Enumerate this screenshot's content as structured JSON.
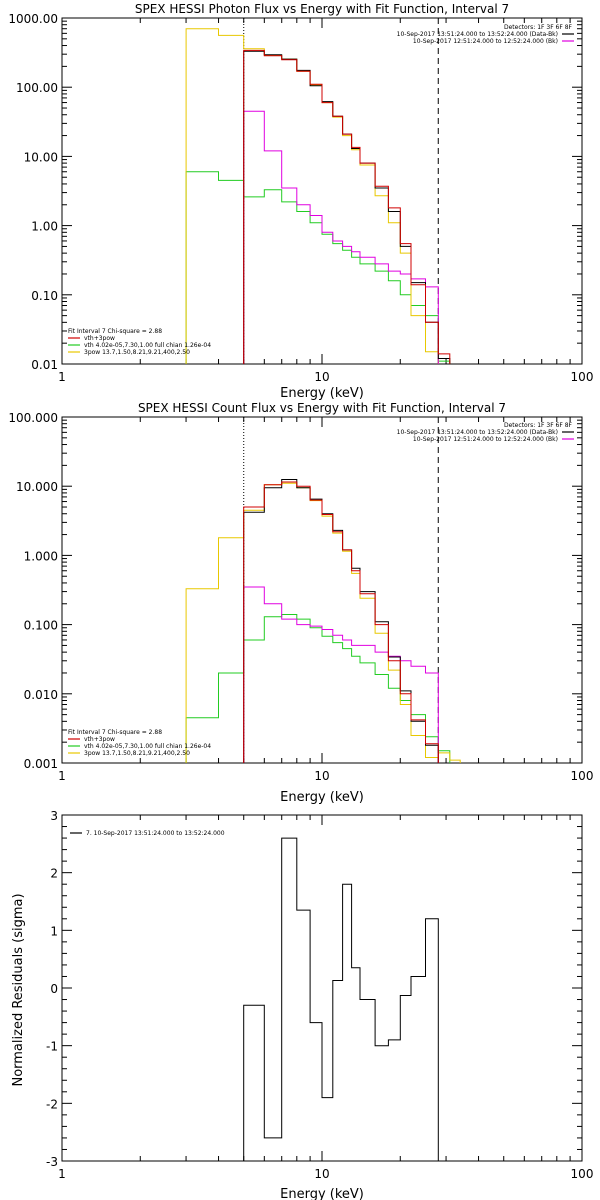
{
  "colors": {
    "data": "#000000",
    "total_fit": "#d00000",
    "background": "#e000e0",
    "vth": "#22cc22",
    "pow": "#e8c800"
  },
  "chart_data": [
    {
      "type": "line",
      "title": "SPEX HESSI Photon Flux vs Energy with Fit Function, Interval 7",
      "xlabel": "Energy (keV)",
      "ylabel": "",
      "xscale": "log",
      "yscale": "log",
      "xlim": [
        1,
        100
      ],
      "ylim": [
        0.01,
        1000
      ],
      "x_ticks": [
        "1",
        "10",
        "100"
      ],
      "y_ticks": [
        "0.01",
        "0.10",
        "1.00",
        "10.00",
        "100.00",
        "1000.00"
      ],
      "y_tick_values": [
        0.01,
        0.1,
        1,
        10,
        100,
        1000
      ],
      "fit_range_keV": [
        5,
        28
      ],
      "header_right": [
        "Detectors: 1F 3F 6F 8F",
        "10-Sep-2017 13:51:24.000 to 13:52:24.000 (Data-Bk)",
        "10-Sep-2017 12:51:24.000 to 12:52:24.000 (Bk)"
      ],
      "legend_left": [
        "Fit Interval 7   Chi-square = 2.88",
        "vth+3pow",
        "vth 4.02e-05,7.30,1.00  full chian 1.26e-04",
        "3pow 13.7,1.50,8.21,9.21,400,2.50"
      ],
      "edges": [
        3,
        4,
        5,
        6,
        7,
        8,
        9,
        10,
        11,
        12,
        13,
        14,
        16,
        18,
        20,
        22,
        25,
        28,
        31,
        34
      ],
      "series": [
        {
          "name": "(Data-Bk)",
          "color": "#000000",
          "values": [
            null,
            null,
            330,
            295,
            255,
            175,
            105,
            62,
            38,
            21,
            13,
            8,
            3.5,
            1.6,
            0.5,
            0.15,
            0.04,
            0.012,
            null
          ]
        },
        {
          "name": "vth+3pow",
          "color": "#d00000",
          "values": [
            null,
            null,
            340,
            285,
            250,
            170,
            110,
            60,
            38,
            21,
            13.5,
            8,
            3.7,
            1.8,
            0.55,
            0.14,
            0.04,
            0.014,
            null
          ]
        },
        {
          "name": "(Bk)",
          "color": "#e000e0",
          "values": [
            null,
            null,
            45,
            12,
            3.5,
            2,
            1.4,
            0.8,
            0.6,
            0.5,
            0.42,
            0.35,
            0.28,
            0.22,
            0.2,
            0.17,
            0.13,
            null,
            null
          ]
        },
        {
          "name": "vth",
          "color": "#22cc22",
          "values": [
            6,
            4.5,
            2.6,
            3.3,
            2.2,
            1.6,
            1.1,
            0.75,
            0.55,
            0.44,
            0.35,
            0.28,
            0.22,
            0.16,
            0.1,
            0.07,
            0.05,
            0.011,
            null
          ]
        },
        {
          "name": "3pow",
          "color": "#e8c800",
          "values": [
            700,
            560,
            360,
            290,
            255,
            170,
            108,
            60,
            37,
            20,
            12.5,
            7.5,
            2.7,
            1.1,
            0.4,
            0.05,
            0.015,
            null,
            null
          ]
        }
      ]
    },
    {
      "type": "line",
      "title": "SPEX HESSI Count Flux vs Energy with Fit Function, Interval 7",
      "xlabel": "Energy (keV)",
      "ylabel": "",
      "xscale": "log",
      "yscale": "log",
      "xlim": [
        1,
        100
      ],
      "ylim": [
        0.001,
        100
      ],
      "x_ticks": [
        "1",
        "10",
        "100"
      ],
      "y_ticks": [
        "0.001",
        "0.010",
        "0.100",
        "1.000",
        "10.000",
        "100.000"
      ],
      "y_tick_values": [
        0.001,
        0.01,
        0.1,
        1,
        10,
        100
      ],
      "fit_range_keV": [
        5,
        28
      ],
      "header_right": [
        "Detectors: 1F 3F 6F 8F",
        "10-Sep-2017 13:51:24.000 to 13:52:24.000 (Data-Bk)",
        "10-Sep-2017 12:51:24.000 to 12:52:24.000 (Bk)"
      ],
      "legend_left": [
        "Fit Interval 7   Chi-square = 2.88",
        "vth+3pow",
        "vth 4.02e-05,7.30,1.00  full chian 1.26e-04",
        "3pow 13.7,1.50,8.21,9.21,400,2.50"
      ],
      "edges": [
        3,
        4,
        5,
        6,
        7,
        8,
        9,
        10,
        11,
        12,
        13,
        14,
        16,
        18,
        20,
        22,
        25,
        28,
        31,
        34
      ],
      "series": [
        {
          "name": "(Data-Bk)",
          "color": "#000000",
          "values": [
            null,
            null,
            4.2,
            9.5,
            12.5,
            9.5,
            6.5,
            4,
            2.3,
            1.2,
            0.65,
            0.3,
            0.11,
            0.034,
            0.011,
            0.004,
            0.0018,
            null,
            null
          ]
        },
        {
          "name": "vth+3pow",
          "color": "#d00000",
          "values": [
            null,
            null,
            5,
            10.5,
            11.5,
            10,
            6.3,
            3.9,
            2.2,
            1.2,
            0.6,
            0.28,
            0.1,
            0.03,
            0.01,
            0.0042,
            0.0019,
            null,
            null
          ]
        },
        {
          "name": "(Bk)",
          "color": "#e000e0",
          "values": [
            null,
            null,
            0.35,
            0.2,
            0.12,
            0.1,
            0.095,
            0.085,
            0.07,
            0.06,
            0.05,
            0.05,
            0.04,
            0.035,
            0.03,
            0.025,
            0.02,
            null,
            null
          ]
        },
        {
          "name": "vth",
          "color": "#22cc22",
          "values": [
            0.0045,
            0.02,
            0.06,
            0.13,
            0.14,
            0.12,
            0.09,
            0.068,
            0.055,
            0.045,
            0.035,
            0.028,
            0.019,
            0.012,
            0.008,
            0.005,
            0.0024,
            0.0015,
            null
          ]
        },
        {
          "name": "3pow",
          "color": "#e8c800",
          "values": [
            0.33,
            1.8,
            4.5,
            10.5,
            11,
            9.5,
            6.2,
            3.7,
            2.1,
            1.15,
            0.55,
            0.24,
            0.075,
            0.022,
            0.007,
            0.0025,
            0.0012,
            0.0014,
            0.0011
          ]
        }
      ]
    },
    {
      "type": "line",
      "title": "",
      "xlabel": "Energy (keV)",
      "ylabel": "Normalized Residuals (sigma)",
      "xscale": "log",
      "yscale": "linear",
      "xlim": [
        1,
        100
      ],
      "ylim": [
        -3,
        3
      ],
      "x_ticks": [
        "1",
        "10",
        "100"
      ],
      "y_ticks": [
        "-3",
        "-2",
        "-1",
        "0",
        "1",
        "2",
        "3"
      ],
      "y_tick_values": [
        -3,
        -2,
        -1,
        0,
        1,
        2,
        3
      ],
      "legend_left": [
        "7. 10-Sep-2017 13:51:24.000 to 13:52:24.000"
      ],
      "edges": [
        5,
        6,
        7,
        8,
        9,
        10,
        11,
        12,
        13,
        14,
        16,
        18,
        20,
        22,
        25,
        28
      ],
      "series": [
        {
          "name": "",
          "color": "#000000",
          "values": [
            -0.3,
            -2.6,
            2.6,
            1.35,
            -0.6,
            -1.9,
            0.13,
            1.8,
            0.35,
            -0.2,
            -1.0,
            -0.9,
            -0.13,
            0.2,
            1.2
          ]
        }
      ]
    }
  ]
}
